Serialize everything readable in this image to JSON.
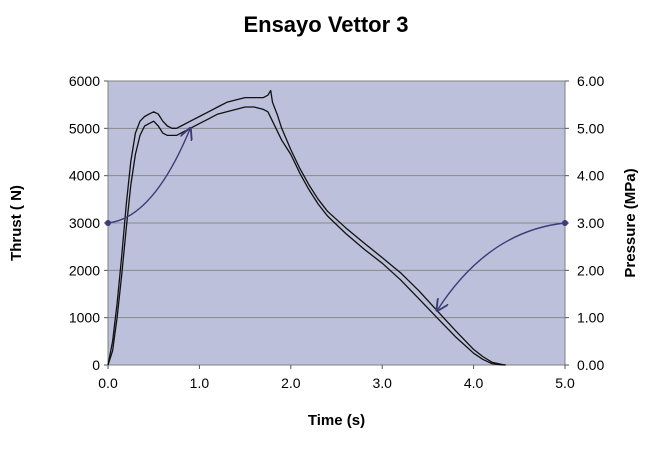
{
  "chart_data": {
    "type": "line",
    "title": "Ensayo Vettor 3",
    "xlabel": "Time (s)",
    "ylabel": "Thrust ( N)",
    "y2label": "Pressure (MPa)",
    "xlim": [
      0,
      5
    ],
    "ylim": [
      0,
      6000
    ],
    "y2lim": [
      0,
      6
    ],
    "x_ticks": [
      "0.0",
      "1.0",
      "2.0",
      "3.0",
      "4.0",
      "5.0"
    ],
    "y_ticks": [
      "0",
      "1000",
      "2000",
      "3000",
      "4000",
      "5000",
      "6000"
    ],
    "y2_ticks": [
      "0.00",
      "1.00",
      "2.00",
      "3.00",
      "4.00",
      "5.00",
      "6.00"
    ],
    "grid": true,
    "legend": "none",
    "plot_background": "#bcc0da",
    "line_color": "#111111",
    "arrow_color": "#3b3b78",
    "series": [
      {
        "axis": "left",
        "x": [
          0.0,
          0.05,
          0.1,
          0.15,
          0.2,
          0.25,
          0.3,
          0.35,
          0.4,
          0.45,
          0.5,
          0.55,
          0.6,
          0.65,
          0.7,
          0.75,
          0.8,
          0.9,
          1.0,
          1.1,
          1.2,
          1.3,
          1.4,
          1.5,
          1.6,
          1.7,
          1.75,
          1.78,
          1.8,
          1.85,
          1.9,
          2.0,
          2.1,
          2.2,
          2.3,
          2.4,
          2.6,
          2.8,
          3.0,
          3.2,
          3.4,
          3.6,
          3.8,
          4.0,
          4.1,
          4.2,
          4.3,
          4.35
        ],
        "y": [
          0,
          500,
          1300,
          2300,
          3400,
          4300,
          4900,
          5150,
          5250,
          5300,
          5350,
          5300,
          5150,
          5050,
          5000,
          5000,
          5050,
          5150,
          5250,
          5350,
          5450,
          5550,
          5600,
          5650,
          5650,
          5650,
          5700,
          5800,
          5550,
          5300,
          5000,
          4550,
          4150,
          3800,
          3500,
          3250,
          2900,
          2580,
          2270,
          1950,
          1570,
          1150,
          730,
          330,
          180,
          60,
          15,
          0
        ]
      },
      {
        "axis": "left",
        "x": [
          0.0,
          0.05,
          0.1,
          0.15,
          0.2,
          0.25,
          0.3,
          0.35,
          0.4,
          0.45,
          0.5,
          0.55,
          0.6,
          0.65,
          0.7,
          0.75,
          0.8,
          0.9,
          1.0,
          1.1,
          1.2,
          1.3,
          1.4,
          1.5,
          1.6,
          1.7,
          1.75,
          1.8,
          1.85,
          1.9,
          2.0,
          2.1,
          2.2,
          2.3,
          2.4,
          2.6,
          2.8,
          3.0,
          3.2,
          3.4,
          3.6,
          3.8,
          4.0,
          4.1,
          4.2,
          4.3,
          4.35
        ],
        "y": [
          0,
          300,
          1000,
          1900,
          2900,
          3800,
          4450,
          4850,
          5050,
          5100,
          5150,
          5050,
          4900,
          4850,
          4850,
          4850,
          4900,
          5000,
          5100,
          5200,
          5300,
          5350,
          5400,
          5450,
          5450,
          5400,
          5350,
          5150,
          4950,
          4750,
          4450,
          4050,
          3700,
          3400,
          3150,
          2780,
          2450,
          2150,
          1800,
          1400,
          1000,
          600,
          250,
          120,
          30,
          5,
          0
        ]
      }
    ],
    "annotations": [
      {
        "from": [
          0.0,
          3000
        ],
        "to": [
          0.9,
          5000
        ],
        "axis": "left"
      },
      {
        "from": [
          5.0,
          3.0
        ],
        "to": [
          3.6,
          1.15
        ],
        "axis": "right"
      }
    ]
  }
}
